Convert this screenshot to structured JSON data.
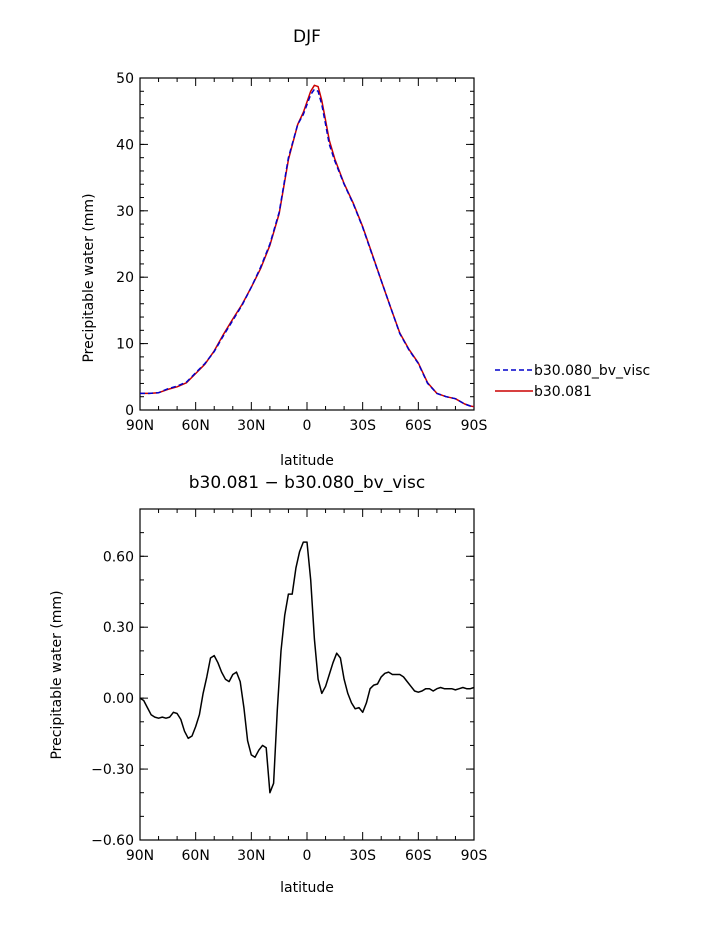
{
  "chart_data": [
    {
      "type": "line",
      "title": "DJF",
      "xlabel": "latitude",
      "ylabel": "Precipitable water (mm)",
      "xlim": [
        -90,
        90
      ],
      "ylim": [
        0,
        50
      ],
      "xticks": [
        {
          "v": -90,
          "label": "90N"
        },
        {
          "v": -60,
          "label": "60N"
        },
        {
          "v": -30,
          "label": "30N"
        },
        {
          "v": 0,
          "label": "0"
        },
        {
          "v": 30,
          "label": "30S"
        },
        {
          "v": 60,
          "label": "60S"
        },
        {
          "v": 90,
          "label": "90S"
        }
      ],
      "yticks": [
        {
          "v": 0,
          "label": "0"
        },
        {
          "v": 10,
          "label": "10"
        },
        {
          "v": 20,
          "label": "20"
        },
        {
          "v": 30,
          "label": "30"
        },
        {
          "v": 40,
          "label": "40"
        },
        {
          "v": 50,
          "label": "50"
        }
      ],
      "legend_position": "right",
      "series": [
        {
          "name": "b30.080_bv_visc",
          "color": "#0000cc",
          "dash": "dashed",
          "x": [
            -90,
            -85,
            -80,
            -75,
            -70,
            -65,
            -60,
            -55,
            -50,
            -45,
            -40,
            -35,
            -30,
            -25,
            -20,
            -15,
            -10,
            -5,
            -2,
            0,
            2,
            4,
            6,
            8,
            10,
            12,
            15,
            20,
            25,
            30,
            35,
            40,
            45,
            50,
            55,
            60,
            65,
            70,
            75,
            80,
            85,
            88,
            90
          ],
          "y": [
            2.5,
            2.5,
            2.6,
            3.2,
            3.6,
            4.2,
            5.6,
            7.0,
            8.8,
            11.2,
            13.5,
            15.8,
            18.5,
            21.5,
            25.0,
            29.8,
            38.0,
            43.0,
            44.5,
            46.0,
            47.5,
            48.3,
            48.0,
            46.0,
            43.0,
            40.0,
            37.5,
            34.0,
            31.0,
            27.5,
            23.5,
            19.5,
            15.5,
            11.5,
            9.0,
            7.0,
            4.0,
            2.5,
            2.0,
            1.7,
            0.9,
            0.6,
            0.5
          ]
        },
        {
          "name": "b30.081",
          "color": "#cc0000",
          "dash": "solid",
          "x": [
            -90,
            -85,
            -80,
            -75,
            -70,
            -65,
            -60,
            -55,
            -50,
            -45,
            -40,
            -35,
            -30,
            -25,
            -20,
            -15,
            -10,
            -5,
            -2,
            0,
            2,
            4,
            6,
            8,
            10,
            12,
            15,
            20,
            25,
            30,
            35,
            40,
            45,
            50,
            55,
            60,
            65,
            70,
            75,
            80,
            85,
            88,
            90
          ],
          "y": [
            2.5,
            2.5,
            2.6,
            3.1,
            3.5,
            4.1,
            5.5,
            6.9,
            8.9,
            11.4,
            13.7,
            15.9,
            18.5,
            21.3,
            24.8,
            29.6,
            37.7,
            43.0,
            44.8,
            46.4,
            48.0,
            48.9,
            48.7,
            46.6,
            43.6,
            40.6,
            37.8,
            34.1,
            31.1,
            27.6,
            23.6,
            19.5,
            15.5,
            11.6,
            9.1,
            7.1,
            4.1,
            2.5,
            2.0,
            1.7,
            0.9,
            0.6,
            0.5
          ]
        }
      ]
    },
    {
      "type": "line",
      "title": "b30.081 − b30.080_bv_visc",
      "xlabel": "latitude",
      "ylabel": "Precipitable water (mm)",
      "xlim": [
        -90,
        90
      ],
      "ylim": [
        -0.6,
        0.8
      ],
      "xticks": [
        {
          "v": -90,
          "label": "90N"
        },
        {
          "v": -60,
          "label": "60N"
        },
        {
          "v": -30,
          "label": "30N"
        },
        {
          "v": 0,
          "label": "0"
        },
        {
          "v": 30,
          "label": "30S"
        },
        {
          "v": 60,
          "label": "60S"
        },
        {
          "v": 90,
          "label": "90S"
        }
      ],
      "yticks": [
        {
          "v": -0.6,
          "label": "−0.60"
        },
        {
          "v": -0.3,
          "label": "−0.30"
        },
        {
          "v": 0.0,
          "label": "0.00"
        },
        {
          "v": 0.3,
          "label": "0.30"
        },
        {
          "v": 0.6,
          "label": "0.60"
        }
      ],
      "series": [
        {
          "name": "",
          "color": "#000000",
          "dash": "solid",
          "x": [
            -90,
            -88,
            -86,
            -84,
            -82,
            -80,
            -78,
            -76,
            -74,
            -72,
            -70,
            -68,
            -66,
            -64,
            -62,
            -60,
            -58,
            -56,
            -54,
            -52,
            -50,
            -48,
            -46,
            -44,
            -42,
            -40,
            -38,
            -36,
            -34,
            -32,
            -30,
            -28,
            -26,
            -24,
            -22,
            -20,
            -18,
            -16,
            -14,
            -12,
            -10,
            -8,
            -6,
            -4,
            -2,
            0,
            2,
            4,
            6,
            8,
            10,
            12,
            14,
            16,
            18,
            20,
            22,
            24,
            26,
            28,
            30,
            32,
            34,
            36,
            38,
            40,
            42,
            44,
            46,
            48,
            50,
            52,
            54,
            56,
            58,
            60,
            62,
            64,
            66,
            68,
            70,
            72,
            74,
            76,
            78,
            80,
            82,
            84,
            86,
            88,
            90
          ],
          "y": [
            0.0,
            -0.01,
            -0.04,
            -0.07,
            -0.08,
            -0.085,
            -0.08,
            -0.085,
            -0.08,
            -0.06,
            -0.065,
            -0.09,
            -0.14,
            -0.17,
            -0.16,
            -0.12,
            -0.07,
            0.02,
            0.09,
            0.17,
            0.18,
            0.15,
            0.11,
            0.08,
            0.07,
            0.1,
            0.11,
            0.07,
            -0.04,
            -0.18,
            -0.24,
            -0.25,
            -0.22,
            -0.2,
            -0.21,
            -0.4,
            -0.36,
            -0.05,
            0.2,
            0.35,
            0.44,
            0.44,
            0.55,
            0.62,
            0.66,
            0.66,
            0.5,
            0.25,
            0.08,
            0.02,
            0.05,
            0.1,
            0.15,
            0.19,
            0.17,
            0.08,
            0.02,
            -0.02,
            -0.045,
            -0.04,
            -0.06,
            -0.02,
            0.04,
            0.055,
            0.06,
            0.09,
            0.105,
            0.11,
            0.1,
            0.1,
            0.1,
            0.09,
            0.07,
            0.05,
            0.03,
            0.025,
            0.03,
            0.04,
            0.04,
            0.03,
            0.04,
            0.045,
            0.04,
            0.04,
            0.04,
            0.035,
            0.04,
            0.045,
            0.04,
            0.04,
            0.045
          ]
        }
      ]
    }
  ]
}
